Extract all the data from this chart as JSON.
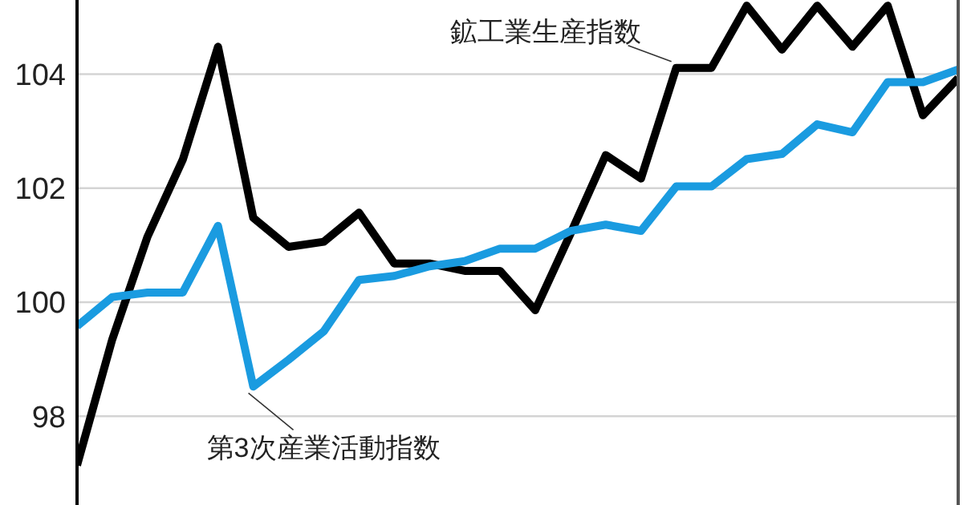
{
  "chart_data": {
    "type": "line",
    "categories": [
      null,
      null,
      null,
      null,
      null,
      null,
      null,
      null,
      null,
      null,
      null,
      null,
      null,
      null,
      null,
      null,
      null,
      null,
      null,
      null,
      null,
      null,
      null,
      null,
      null,
      null
    ],
    "series": [
      {
        "name": "鉱工業生産指数",
        "color": "#000000",
        "values": [
          97.14,
          99.35,
          101.15,
          102.5,
          104.48,
          101.48,
          100.97,
          101.06,
          101.57,
          100.68,
          100.68,
          100.55,
          100.55,
          99.86,
          101.2,
          102.58,
          102.17,
          104.11,
          104.11,
          105.2,
          104.43,
          105.2,
          104.48,
          105.2,
          103.28,
          103.93
        ]
      },
      {
        "name": "第3次産業活動指数",
        "color": "#1a9be0",
        "values": [
          99.58,
          100.09,
          100.17,
          100.17,
          101.34,
          98.52,
          98.99,
          99.49,
          100.39,
          100.46,
          100.63,
          100.72,
          100.94,
          100.94,
          101.25,
          101.36,
          101.25,
          102.03,
          102.03,
          102.51,
          102.6,
          103.12,
          102.98,
          103.86,
          103.86,
          104.08
        ]
      }
    ],
    "ylim": [
      96.5,
      105.3
    ],
    "yticks": [
      98,
      100,
      102,
      104
    ],
    "grid": "y",
    "tick_labels": "y",
    "legend": false,
    "marker": "none",
    "line_style": "solid"
  }
}
